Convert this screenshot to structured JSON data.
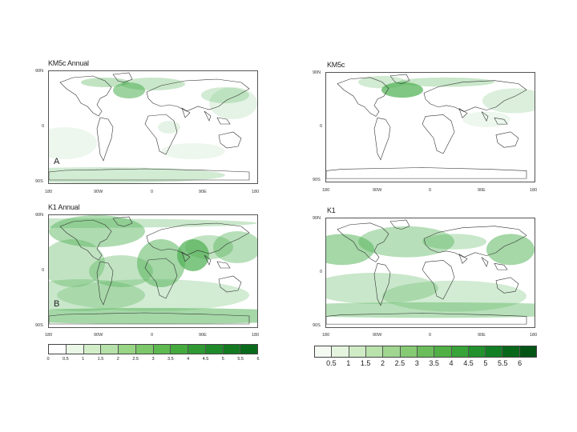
{
  "panels": {
    "tl": {
      "title": "KM5c Annual",
      "label": "A"
    },
    "tr": {
      "title": "KM5c",
      "label": ""
    },
    "bl": {
      "title": "K1 Annual",
      "label": "B"
    },
    "br": {
      "title": "K1",
      "label": ""
    }
  },
  "lat_ticks": [
    "90N",
    "0",
    "90S"
  ],
  "lon_ticks": [
    "180",
    "90W",
    "0",
    "90E",
    "180"
  ],
  "colorbar_left": {
    "labels": [
      "0",
      "0.5",
      "1",
      "1.5",
      "2",
      "2.5",
      "3",
      "3.5",
      "4",
      "4.5",
      "5",
      "5.5",
      "6"
    ],
    "colors": [
      "#ffffff",
      "#ebf7e6",
      "#d2eec9",
      "#b6e2a9",
      "#98d585",
      "#7cc76a",
      "#5db950",
      "#44aa3e",
      "#2f9a33",
      "#1f8a2a",
      "#137a22",
      "#0a6a1c"
    ]
  },
  "colorbar_right": {
    "labels": [
      "0.5",
      "1",
      "1.5",
      "2",
      "2.5",
      "3",
      "3.5",
      "4",
      "4.5",
      "5",
      "5.5",
      "6"
    ],
    "colors": [
      "#f5fbf3",
      "#e4f4de",
      "#d0ecc7",
      "#b9e2ad",
      "#a0d690",
      "#86ca74",
      "#6bbd5b",
      "#50b046",
      "#38a338",
      "#23912e",
      "#137f25",
      "#07681b",
      "#035516"
    ]
  }
}
